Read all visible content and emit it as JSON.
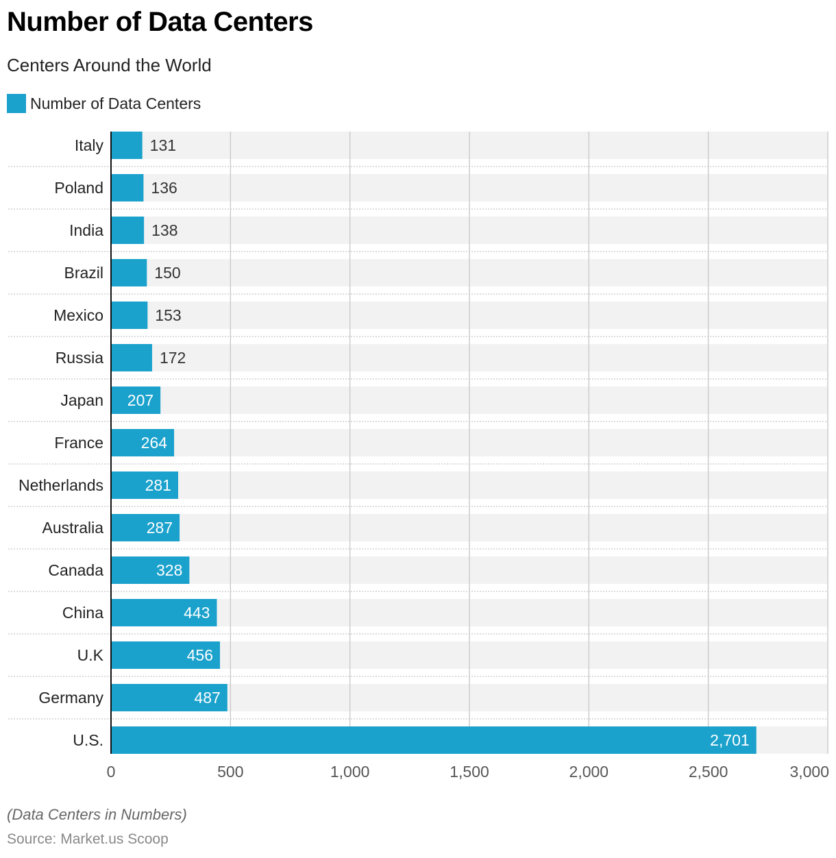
{
  "colors": {
    "bar": "#1aa1cc",
    "band": "#f2f2f2",
    "gridline": "#cccccc",
    "axis": "#111111",
    "label_inside": "#ffffff",
    "label_outside": "#333333"
  },
  "chart_data": {
    "type": "bar",
    "orientation": "horizontal",
    "title": "Number of Data Centers",
    "subtitle": "Centers Around the World",
    "legend": [
      {
        "name": "Number of Data Centers",
        "color": "#1aa1cc"
      }
    ],
    "legend_position": "top-left",
    "categories": [
      "Italy",
      "Poland",
      "India",
      "Brazil",
      "Mexico",
      "Russia",
      "Japan",
      "France",
      "Netherlands",
      "Australia",
      "Canada",
      "China",
      "U.K",
      "Germany",
      "U.S."
    ],
    "series": [
      {
        "name": "Number of Data Centers",
        "values": [
          131,
          136,
          138,
          150,
          153,
          172,
          207,
          264,
          281,
          287,
          328,
          443,
          456,
          487,
          2701
        ]
      }
    ],
    "data_labels": [
      "131",
      "136",
      "138",
      "150",
      "153",
      "172",
      "207",
      "264",
      "281",
      "287",
      "328",
      "443",
      "456",
      "487",
      "2,701"
    ],
    "xlim": [
      0,
      3000
    ],
    "xticks": [
      0,
      500,
      1000,
      1500,
      2000,
      2500,
      3000
    ],
    "xtick_labels": [
      "0",
      "500",
      "1,000",
      "1,500",
      "2,000",
      "2,500",
      "3,000"
    ],
    "xlabel": "",
    "ylabel": "",
    "grid": true,
    "note": "(Data Centers in Numbers)",
    "source": "Source: Market.us Scoop"
  }
}
